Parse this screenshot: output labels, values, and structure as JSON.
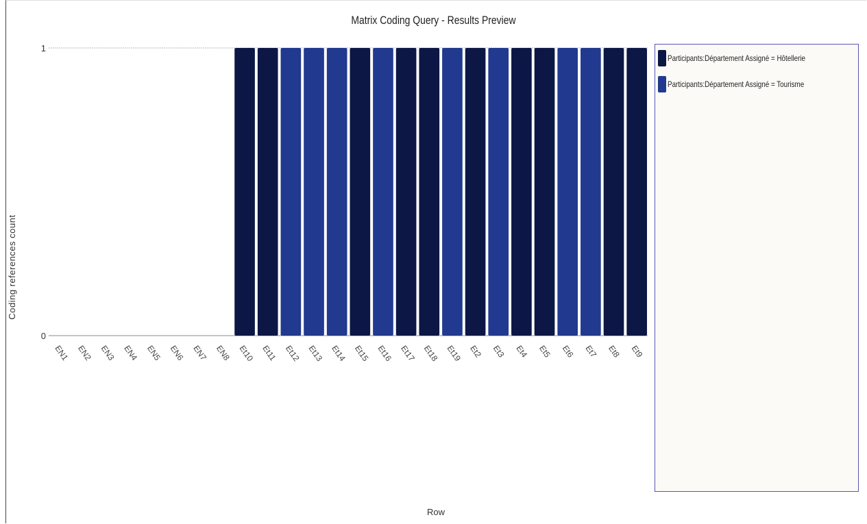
{
  "title": "Matrix Coding Query - Results Preview",
  "chart_data": {
    "type": "bar",
    "title": "Matrix Coding Query - Results Preview",
    "xlabel": "Row",
    "ylabel": "Coding references count",
    "ylim": [
      0,
      1
    ],
    "yticks": [
      "0",
      "1"
    ],
    "categories": [
      "EN1",
      "EN2",
      "EN3",
      "EN4",
      "EN5",
      "EN6",
      "EN7",
      "EN8",
      "Et10",
      "Et11",
      "Et12",
      "Et13",
      "Et14",
      "Et15",
      "Et16",
      "Et17",
      "Et18",
      "Et19",
      "Et2",
      "Et3",
      "Et4",
      "Et5",
      "Et6",
      "Et7",
      "Et8",
      "Et9"
    ],
    "series": [
      {
        "name": "Participants:Département Assigné = Hôtellerie",
        "color": "#0d1745",
        "values": [
          0,
          0,
          0,
          0,
          0,
          0,
          0,
          0,
          1,
          1,
          0,
          0,
          0,
          1,
          0,
          1,
          1,
          0,
          1,
          0,
          1,
          1,
          0,
          0,
          1,
          1
        ]
      },
      {
        "name": "Participants:Département Assigné = Tourisme",
        "color": "#213a8f",
        "values": [
          0,
          0,
          0,
          0,
          0,
          0,
          0,
          0,
          0,
          0,
          1,
          1,
          1,
          0,
          1,
          0,
          0,
          1,
          0,
          1,
          0,
          0,
          1,
          1,
          0,
          0
        ]
      }
    ],
    "legend_position": "right",
    "grid": false
  }
}
